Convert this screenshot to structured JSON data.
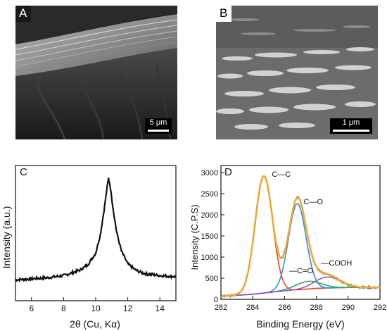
{
  "panels": {
    "a": {
      "label": "A",
      "scalebar": "5 μm"
    },
    "b": {
      "label": "B",
      "scalebar": "1 μm"
    },
    "c": {
      "label": "C"
    },
    "d": {
      "label": "D"
    }
  },
  "colors": {
    "envelope": "#f0a830",
    "raw": "#777777",
    "cc": "#e8422c",
    "co": "#2f8fd6",
    "c_eq_o": "#2eaa55",
    "cooh": "#a050c0"
  },
  "chart_data": [
    {
      "type": "line",
      "panel": "C",
      "xlabel": "2θ (Cu, Kα)",
      "ylabel": "Intensity (a.u.)",
      "xlim": [
        5,
        15
      ],
      "x_ticks": [
        6,
        8,
        10,
        12,
        14
      ],
      "y_ticks_shown": false,
      "series": [
        {
          "x": [
            5.0,
            6.0,
            7.0,
            8.0,
            9.0,
            9.5,
            10.0,
            10.3,
            10.5,
            10.7,
            10.8,
            10.9,
            11.1,
            11.3,
            11.6,
            12.0,
            12.5,
            13.0,
            14.0,
            15.0
          ],
          "y": [
            0.05,
            0.06,
            0.07,
            0.09,
            0.14,
            0.19,
            0.3,
            0.48,
            0.68,
            0.9,
            1.0,
            0.93,
            0.7,
            0.5,
            0.32,
            0.2,
            0.14,
            0.11,
            0.09,
            0.08
          ]
        }
      ]
    },
    {
      "type": "line",
      "panel": "D",
      "xlabel": "Binding Energy (eV)",
      "ylabel": "Intensity (C.P.S)",
      "xlim": [
        282,
        292
      ],
      "ylim": [
        0,
        3000
      ],
      "x_ticks": [
        282,
        284,
        286,
        288,
        290,
        292
      ],
      "y_ticks": [
        0,
        500,
        1000,
        1500,
        2000,
        2500,
        3000
      ],
      "annotations": [
        {
          "text": "C—C",
          "x": 285.2,
          "y": 2900
        },
        {
          "text": "C—O",
          "x": 287.2,
          "y": 2250
        },
        {
          "text": "—C=O",
          "x": 286.3,
          "y": 620
        },
        {
          "text": "—COOH",
          "x": 288.3,
          "y": 800
        }
      ],
      "components": [
        {
          "name": "C—C",
          "center": 284.7,
          "height": 2770,
          "width": 0.55
        },
        {
          "name": "C—O",
          "center": 286.8,
          "height": 2040,
          "width": 0.55
        },
        {
          "name": "—C=O",
          "center": 287.5,
          "height": 180,
          "width": 0.8
        },
        {
          "name": "—COOH",
          "center": 288.7,
          "height": 260,
          "width": 0.8
        }
      ],
      "background": [
        {
          "x": 282,
          "y": 70
        },
        {
          "x": 284,
          "y": 120
        },
        {
          "x": 286,
          "y": 200
        },
        {
          "x": 288,
          "y": 260
        },
        {
          "x": 290,
          "y": 280
        },
        {
          "x": 292,
          "y": 280
        }
      ],
      "peak_values": {
        "C—C": 3000,
        "C—O": 2330
      }
    }
  ]
}
